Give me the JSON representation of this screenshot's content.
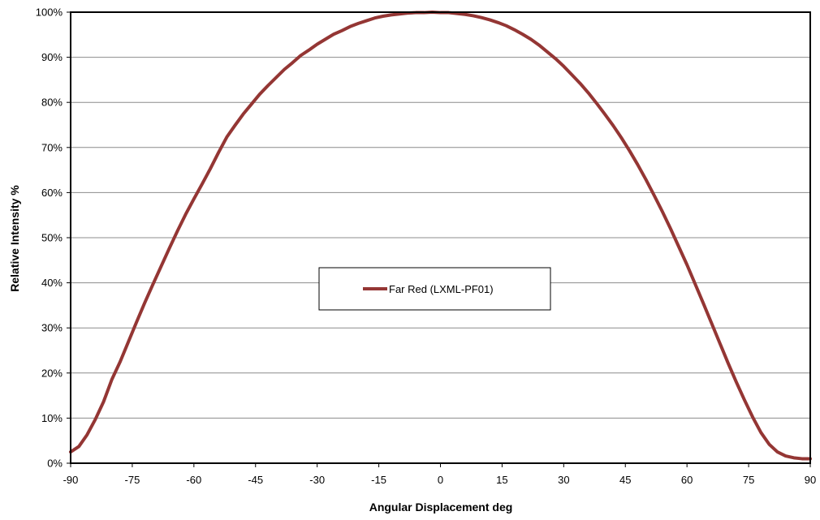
{
  "chart_data": {
    "type": "line",
    "title": "",
    "xlabel": "Angular Displacement deg",
    "ylabel": "Relative Intensity %",
    "xlim": [
      -90,
      90
    ],
    "ylim": [
      0,
      100
    ],
    "x_ticks": [
      -90,
      -75,
      -60,
      -45,
      -30,
      -15,
      0,
      15,
      30,
      45,
      60,
      75,
      90
    ],
    "x_tick_labels": [
      "-90",
      "-75",
      "-60",
      "-45",
      "-30",
      "-15",
      "0",
      "15",
      "30",
      "45",
      "60",
      "75",
      "90"
    ],
    "y_ticks": [
      0,
      10,
      20,
      30,
      40,
      50,
      60,
      70,
      80,
      90,
      100
    ],
    "y_tick_labels": [
      "0%",
      "10%",
      "20%",
      "30%",
      "40%",
      "50%",
      "60%",
      "70%",
      "80%",
      "90%",
      "100%"
    ],
    "grid": "horizontal",
    "legend_placement": "center",
    "series": [
      {
        "name": "Far Red (LXML-PF01)",
        "color": "#943634",
        "x": [
          -90,
          -88,
          -86,
          -84,
          -82,
          -80,
          -78,
          -76,
          -74,
          -72,
          -70,
          -68,
          -66,
          -64,
          -62,
          -60,
          -58,
          -56,
          -54,
          -52,
          -50,
          -48,
          -46,
          -44,
          -42,
          -40,
          -38,
          -36,
          -34,
          -32,
          -30,
          -28,
          -26,
          -24,
          -22,
          -20,
          -18,
          -16,
          -14,
          -12,
          -10,
          -8,
          -6,
          -4,
          -2,
          0,
          2,
          4,
          6,
          8,
          10,
          12,
          14,
          16,
          18,
          20,
          22,
          24,
          26,
          28,
          30,
          32,
          34,
          36,
          38,
          40,
          42,
          44,
          46,
          48,
          50,
          52,
          54,
          56,
          58,
          60,
          62,
          64,
          66,
          68,
          70,
          72,
          74,
          76,
          78,
          80,
          82,
          84,
          86,
          88,
          90
        ],
        "y": [
          2.5,
          3.7,
          6.3,
          9.7,
          13.6,
          18.5,
          22.4,
          26.8,
          31.2,
          35.5,
          39.6,
          43.6,
          47.6,
          51.5,
          55.2,
          58.6,
          61.9,
          65.3,
          68.9,
          72.3,
          74.9,
          77.4,
          79.6,
          81.8,
          83.7,
          85.5,
          87.3,
          88.8,
          90.4,
          91.6,
          92.9,
          94.0,
          95.1,
          95.9,
          96.8,
          97.5,
          98.1,
          98.7,
          99.1,
          99.4,
          99.6,
          99.8,
          99.9,
          99.9,
          100.0,
          99.9,
          99.9,
          99.7,
          99.5,
          99.2,
          98.8,
          98.3,
          97.7,
          97.0,
          96.1,
          95.1,
          94.0,
          92.7,
          91.2,
          89.7,
          88.0,
          86.1,
          84.2,
          82.1,
          79.8,
          77.4,
          74.9,
          72.2,
          69.3,
          66.2,
          62.9,
          59.4,
          55.8,
          52.0,
          48.0,
          44.0,
          39.7,
          35.4,
          31.0,
          26.6,
          22.2,
          18.0,
          14.0,
          10.2,
          6.8,
          4.2,
          2.5,
          1.6,
          1.2,
          1.0,
          1.0
        ]
      }
    ]
  }
}
